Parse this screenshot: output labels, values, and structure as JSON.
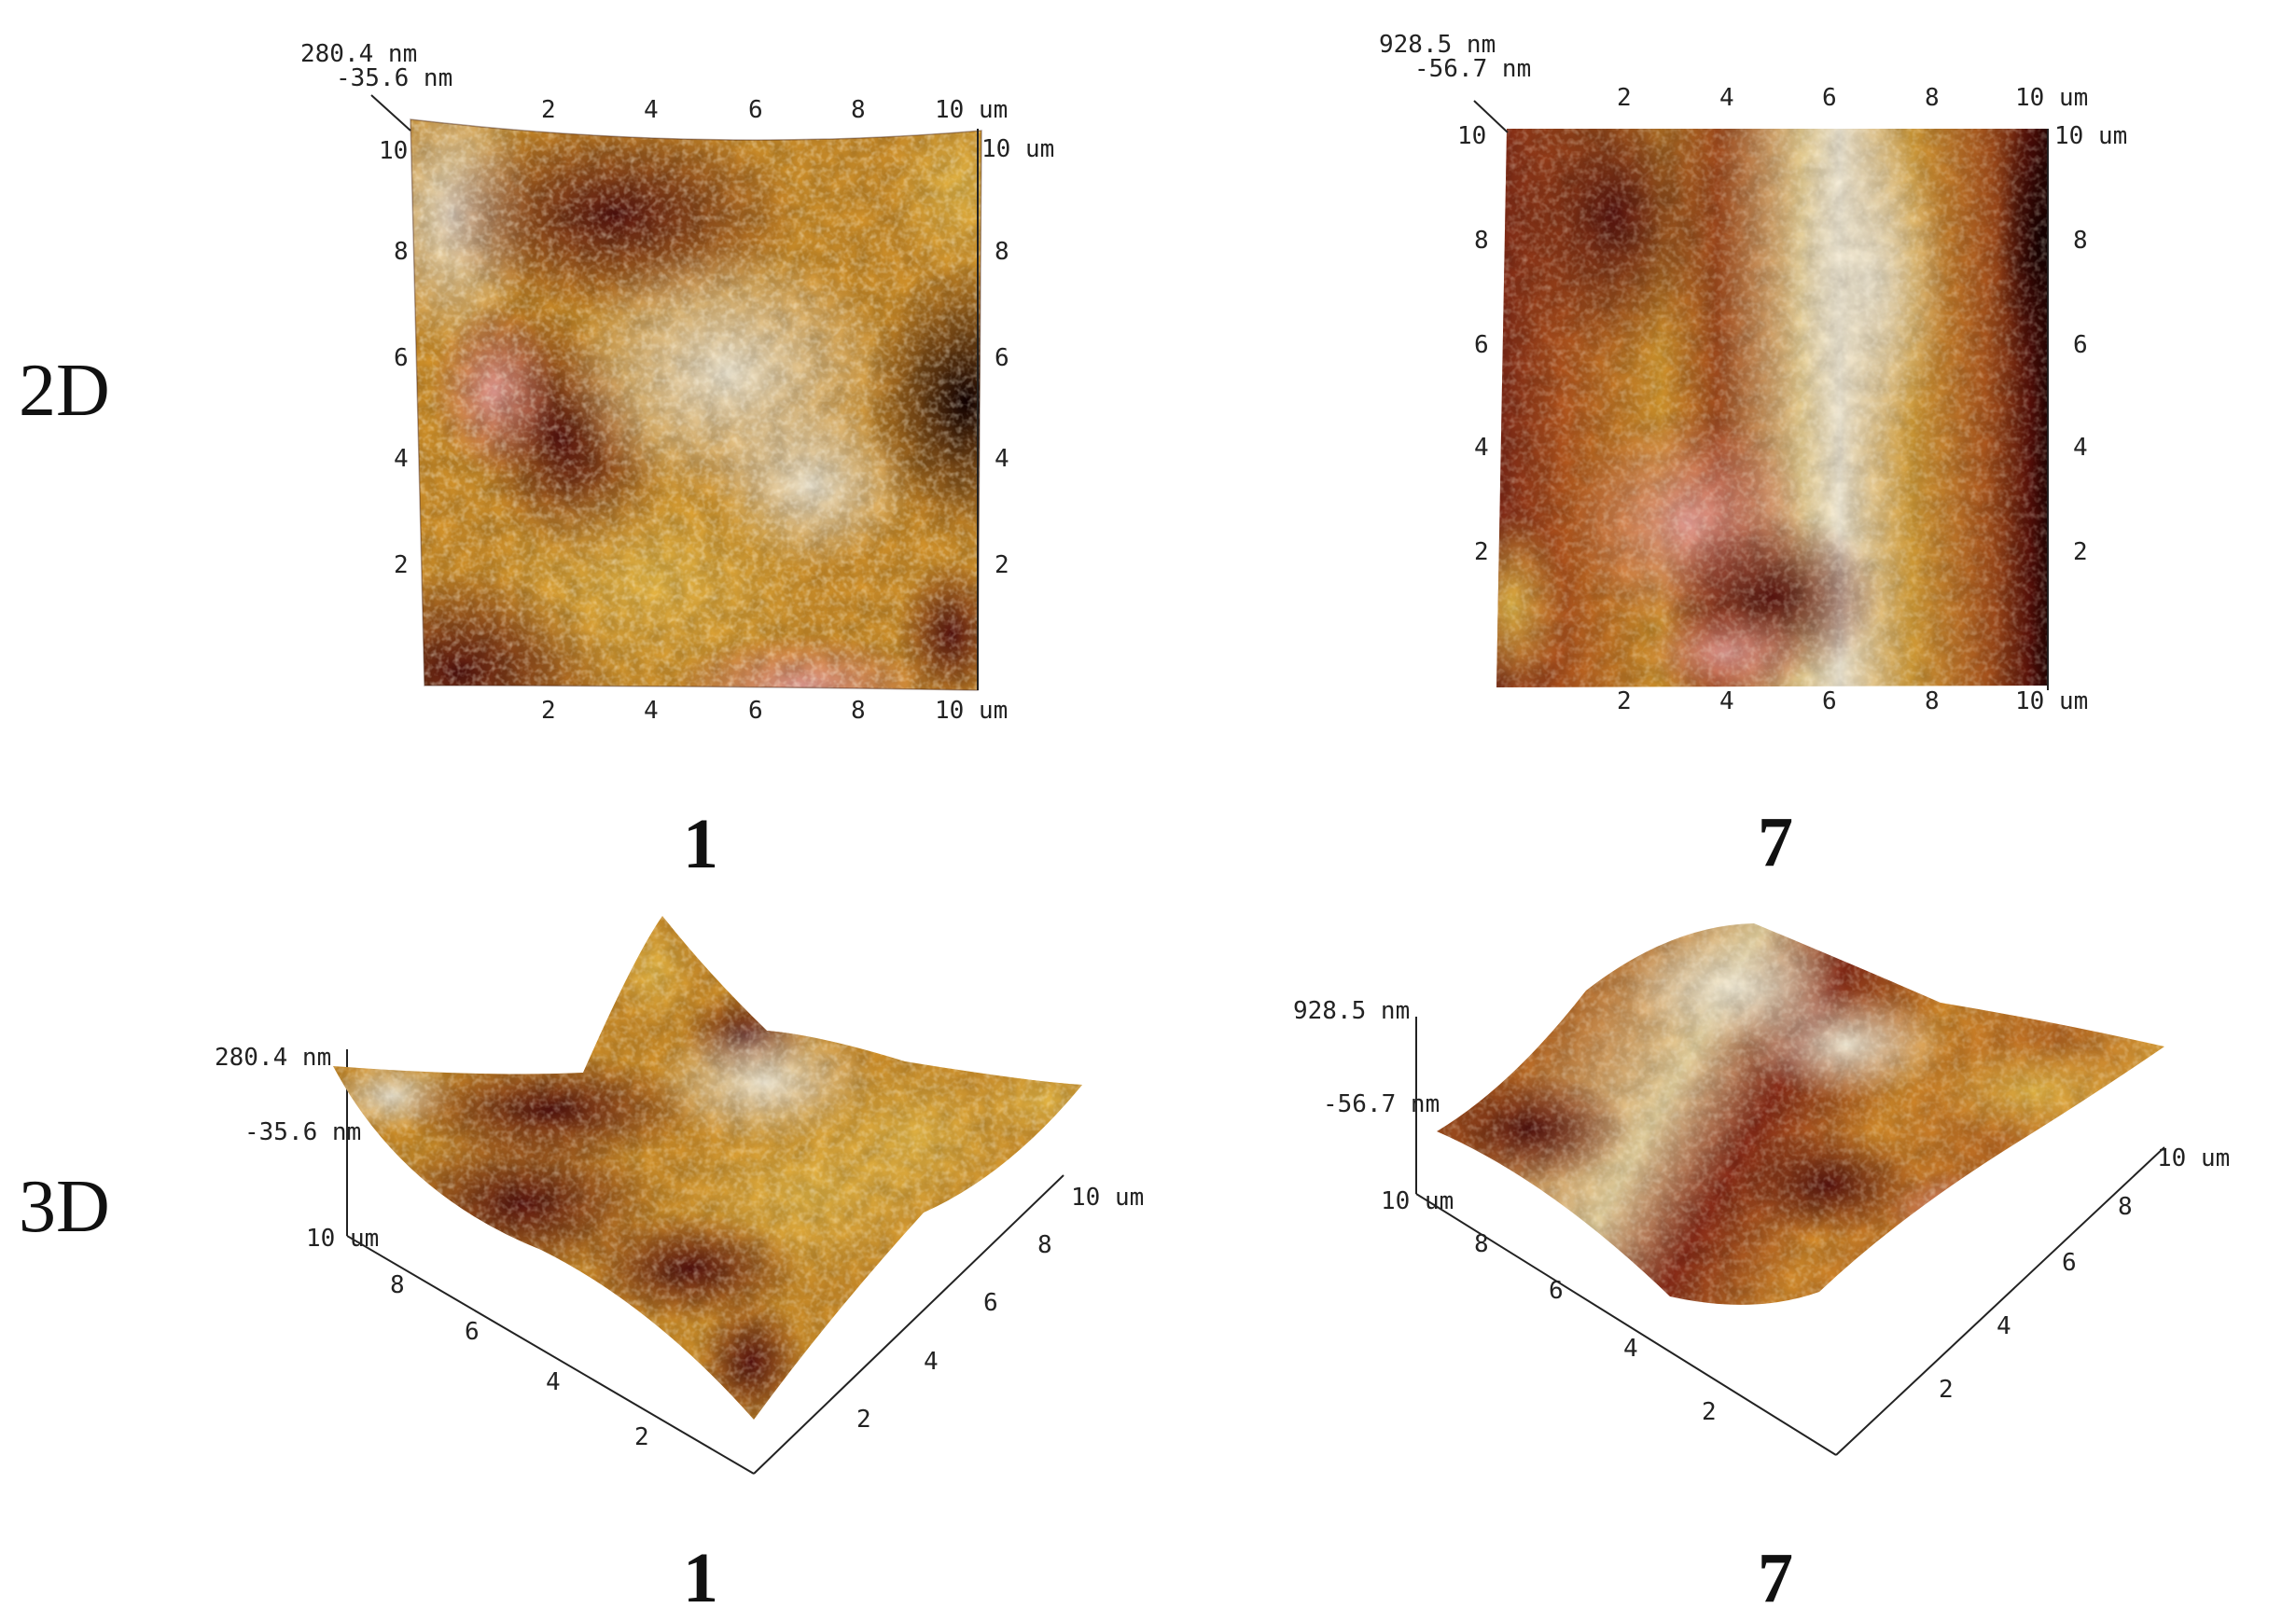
{
  "rows": {
    "top": "2D",
    "bottom": "3D"
  },
  "unit": "um",
  "panels": [
    {
      "id": "2d-1",
      "label": "1",
      "view": "2D",
      "z_max": "280.4 nm",
      "z_min": "-35.6 nm",
      "top_ticks": [
        "2",
        "4",
        "6",
        "8",
        "10 um"
      ],
      "bottom_ticks": [
        "2",
        "4",
        "6",
        "8",
        "10 um"
      ],
      "left_ticks": [
        "2",
        "4",
        "6",
        "8",
        "10"
      ],
      "right_ticks": [
        "2",
        "4",
        "6",
        "8",
        "10 um"
      ]
    },
    {
      "id": "2d-7",
      "label": "7",
      "view": "2D",
      "z_max": "928.5 nm",
      "z_min": "-56.7 nm",
      "top_ticks": [
        "2",
        "4",
        "6",
        "8",
        "10 um"
      ],
      "bottom_ticks": [
        "2",
        "4",
        "6",
        "8",
        "10 um"
      ],
      "left_ticks": [
        "2",
        "4",
        "6",
        "8",
        "10"
      ],
      "right_ticks": [
        "2",
        "4",
        "6",
        "8",
        "10 um"
      ]
    },
    {
      "id": "3d-1",
      "label": "1",
      "view": "3D",
      "z_max": "280.4 nm",
      "z_min": "-35.6 nm",
      "left_ticks": [
        "2",
        "4",
        "6",
        "8",
        "10 um"
      ],
      "right_ticks": [
        "2",
        "4",
        "6",
        "8",
        "10 um"
      ]
    },
    {
      "id": "3d-7",
      "label": "7",
      "view": "3D",
      "z_max": "928.5 nm",
      "z_min": "-56.7 nm",
      "left_ticks": [
        "2",
        "4",
        "6",
        "8",
        "10 um"
      ],
      "right_ticks": [
        "2",
        "4",
        "6",
        "8",
        "10 um"
      ]
    }
  ],
  "colors": {
    "dark": "#4a0d0a",
    "maroon": "#7a1f16",
    "brown": "#a24a1c",
    "orange": "#d18a24",
    "gold": "#e8b23a",
    "pale": "#f3e6cc",
    "pink": "#e78f86",
    "white": "#ffffff"
  }
}
